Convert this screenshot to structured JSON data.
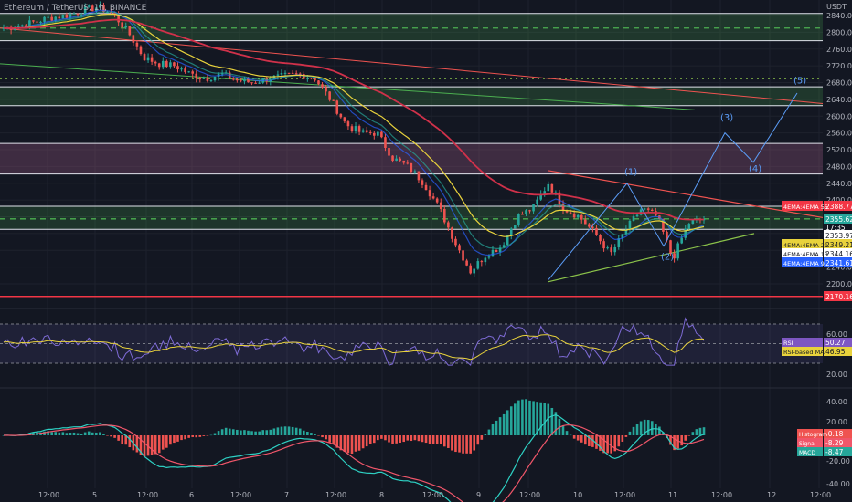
{
  "title": "Ethereum / TetherUS, 1h, BINANCE",
  "currency": "USDT",
  "colors": {
    "background": "#131722",
    "up": "#26a69a",
    "down": "#ef5350",
    "ema9": "#2962ff",
    "ema13": "#26a69a",
    "ema21": "#e8d23c",
    "ema55": "#d0314a",
    "rsi": "#7e6bd6",
    "rsi_ma": "#e8d23c",
    "macd": "#2ed1c4",
    "signal": "#f0566a",
    "wave": "#5b9cf6"
  },
  "chart_data": [
    {
      "type": "candlestick",
      "ylim": [
        2165,
        2855
      ],
      "y_ticks": [
        "2840.00",
        "2800.00",
        "2760.00",
        "2720.00",
        "2680.00",
        "2640.00",
        "2600.00",
        "2560.00",
        "2520.00",
        "2480.00",
        "2440.00",
        "2400.00",
        "2360.00",
        "2320.00",
        "2280.00",
        "2240.00",
        "2200.00"
      ],
      "x_ticks": [
        "12:00",
        "5",
        "12:00",
        "6",
        "12:00",
        "7",
        "12:00",
        "8",
        "12:00",
        "9",
        "12:00",
        "10",
        "12:00",
        "11",
        "12:00",
        "12",
        "12:00"
      ],
      "countdown": "17:35",
      "price_tags": [
        {
          "label": "4EMA:4EMA 55",
          "value": "2388.77"
        },
        {
          "label": "",
          "value": "2355.62"
        },
        {
          "label": "",
          "value": "2353.97"
        },
        {
          "label": "4EMA:4EMA 21",
          "value": "2349.21"
        },
        {
          "label": "4EMA:4EMA 13",
          "value": "2344.16"
        },
        {
          "label": "4EMA:4EMA 9",
          "value": "2341.61"
        },
        {
          "label": "",
          "value": "2170.16"
        }
      ],
      "zones": [
        {
          "from": 2780,
          "to": 2845,
          "kind": "supply"
        },
        {
          "from": 2625,
          "to": 2670,
          "kind": "supply"
        },
        {
          "from": 2462,
          "to": 2535,
          "kind": "resistance"
        },
        {
          "from": 2330,
          "to": 2385,
          "kind": "current"
        }
      ],
      "levels": [
        2170.16
      ],
      "dashed_levels": [
        2355,
        2810
      ],
      "dotted_levels": [
        2690
      ],
      "wave_labels": [
        "(1)",
        "(2)",
        "(3)",
        "(4)",
        "(5)"
      ],
      "anchor_prices": [
        2810,
        2815,
        2825,
        2835,
        2840,
        2850,
        2860,
        2845,
        2800,
        2740,
        2725,
        2720,
        2700,
        2690,
        2700,
        2685,
        2680,
        2690,
        2695,
        2700,
        2690,
        2640,
        2580,
        2560,
        2560,
        2500,
        2480,
        2440,
        2380,
        2300,
        2230,
        2270,
        2290,
        2360,
        2380,
        2440,
        2380,
        2360,
        2320,
        2270,
        2330,
        2380,
        2360,
        2260,
        2345,
        2355
      ]
    },
    {
      "type": "line",
      "indicator": "RSI",
      "series": [
        {
          "name": "RSI",
          "last": "50.27"
        },
        {
          "name": "RSI-based MA",
          "last": "46.95"
        }
      ],
      "y_ticks": [
        "60.00",
        "40.00",
        "20.00"
      ]
    },
    {
      "type": "bar",
      "indicator": "MACD",
      "series": [
        {
          "name": "Histogram",
          "last": "-0.18"
        },
        {
          "name": "Signal",
          "last": "-8.29"
        },
        {
          "name": "MACD",
          "last": "-8.47"
        }
      ],
      "y_ticks": [
        "40.00",
        "20.00",
        "0.00",
        "-20.00",
        "-40.00"
      ]
    }
  ]
}
